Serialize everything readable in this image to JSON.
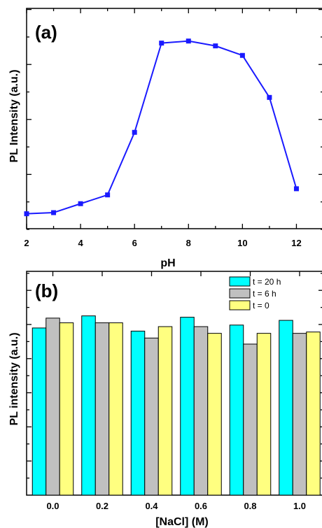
{
  "chart_data": [
    {
      "type": "line",
      "panel_label": "(a)",
      "xlabel": "pH",
      "ylabel": "PL Intensity (a.u.)",
      "xlim": [
        2,
        13
      ],
      "ylim": [
        0,
        100
      ],
      "xticks": [
        2,
        4,
        6,
        8,
        10,
        12
      ],
      "tick_labels": [
        "2",
        "4",
        "6",
        "8",
        "10",
        "12"
      ],
      "show_y_tick_labels": false,
      "grid": false,
      "color": "#1a1aff",
      "x": [
        2,
        3,
        4,
        5,
        6,
        7,
        8,
        9,
        10,
        11,
        12
      ],
      "y": [
        2,
        2.6,
        7.4,
        12.1,
        45.6,
        93.4,
        94.5,
        91.9,
        86.8,
        64.3,
        15.4
      ]
    },
    {
      "type": "bar",
      "panel_label": "(b)",
      "xlabel": "[NaCl] (M)",
      "ylabel": "PL intensity (a.u.)",
      "categories": [
        "0.0",
        "0.2",
        "0.4",
        "0.6",
        "0.8",
        "1.0"
      ],
      "ylim": [
        0,
        100
      ],
      "show_y_tick_labels": false,
      "grid": false,
      "legend_position": "top-right",
      "series": [
        {
          "name": "t = 20 h",
          "color": "#00ffff",
          "values": [
            74.7,
            80.1,
            73.3,
            79.5,
            76.0,
            78.1
          ]
        },
        {
          "name": "t = 6 h",
          "color": "#c0c0c0",
          "values": [
            79.1,
            77.0,
            70.2,
            75.3,
            67.5,
            72.3
          ]
        },
        {
          "name": "t = 0",
          "color": "#ffff80",
          "values": [
            77.0,
            77.0,
            75.3,
            72.3,
            72.3,
            72.9
          ]
        }
      ]
    }
  ]
}
